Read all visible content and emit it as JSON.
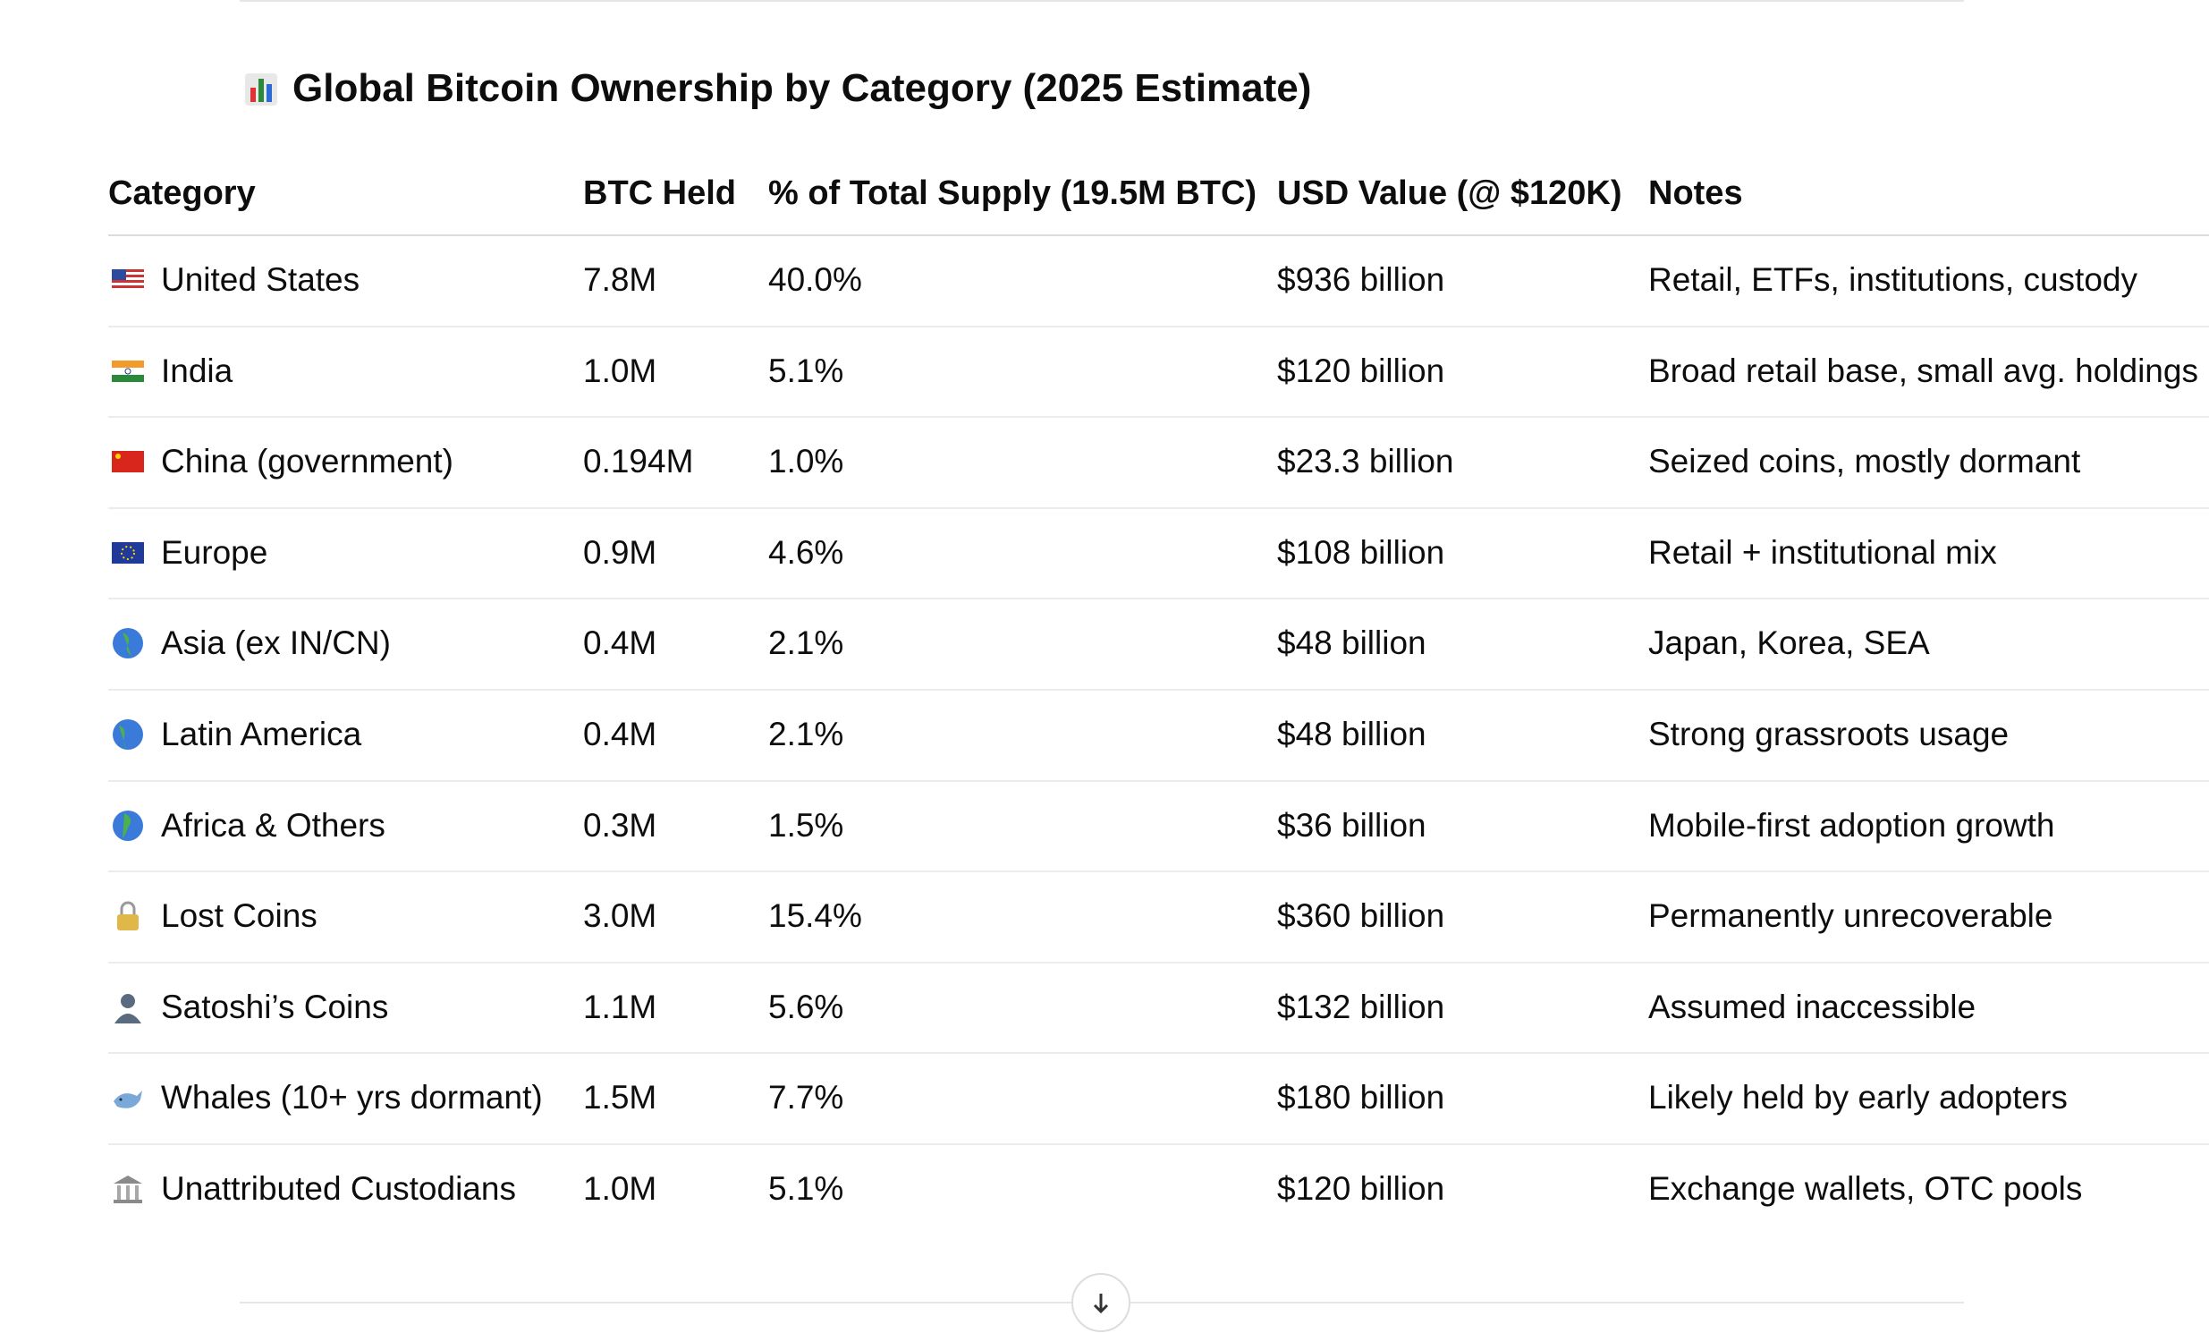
{
  "header": {
    "title": "Global Bitcoin Ownership by Category (2025 Estimate)"
  },
  "table": {
    "columns": [
      "Category",
      "BTC Held",
      "% of Total Supply (19.5M BTC)",
      "USD Value (@ $120K)",
      "Notes"
    ],
    "rows": [
      [
        "United States",
        "7.8M",
        "40.0%",
        "$936 billion",
        "Retail, ETFs, institutions, custody"
      ],
      [
        "India",
        "1.0M",
        "5.1%",
        "$120 billion",
        "Broad retail base, small avg. holdings"
      ],
      [
        "China (government)",
        "0.194M",
        "1.0%",
        "$23.3 billion",
        "Seized coins, mostly dormant"
      ],
      [
        "Europe",
        "0.9M",
        "4.6%",
        "$108 billion",
        "Retail + institutional mix"
      ],
      [
        "Asia (ex IN/CN)",
        "0.4M",
        "2.1%",
        "$48 billion",
        "Japan, Korea, SEA"
      ],
      [
        "Latin America",
        "0.4M",
        "2.1%",
        "$48 billion",
        "Strong grassroots usage"
      ],
      [
        "Africa & Others",
        "0.3M",
        "1.5%",
        "$36 billion",
        "Mobile-first adoption growth"
      ],
      [
        "Lost Coins",
        "3.0M",
        "15.4%",
        "$360 billion",
        "Permanently unrecoverable"
      ],
      [
        "Satoshi’s Coins",
        "1.1M",
        "5.6%",
        "$132 billion",
        "Assumed inaccessible"
      ],
      [
        "Whales (10+ yrs dormant)",
        "1.5M",
        "7.7%",
        "$180 billion",
        "Likely held by early adopters"
      ],
      [
        "Unattributed Custodians",
        "1.0M",
        "5.1%",
        "$120 billion",
        "Exchange wallets, OTC pools"
      ]
    ]
  }
}
